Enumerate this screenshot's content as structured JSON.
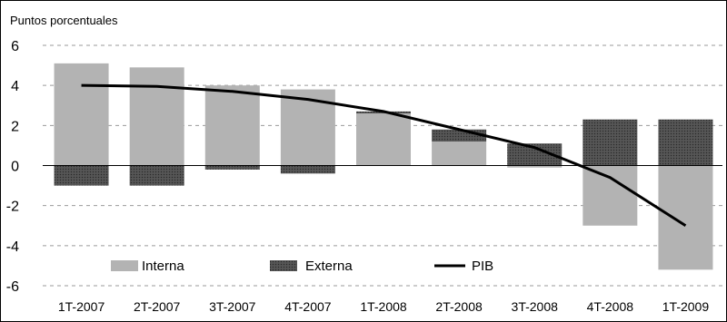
{
  "chart_data": {
    "type": "bar",
    "ylabel": "Puntos porcentuales",
    "ylim": [
      -6,
      6
    ],
    "yticks": [
      "6",
      "4",
      "2",
      "0",
      "-2",
      "-4",
      "-6"
    ],
    "ytick_values": [
      6,
      4,
      2,
      0,
      -2,
      -4,
      -6
    ],
    "categories": [
      "1T-2007",
      "2T-2007",
      "3T-2007",
      "4T-2007",
      "1T-2008",
      "2T-2008",
      "3T-2008",
      "4T-2008",
      "1T-2009"
    ],
    "series": [
      {
        "name": "Interna",
        "kind": "bar",
        "color": "#b3b3b3",
        "values": [
          5.1,
          4.9,
          4.0,
          3.8,
          2.6,
          1.2,
          -0.1,
          -3.0,
          -5.2
        ]
      },
      {
        "name": "Externa",
        "kind": "bar",
        "color": "#4a4a4a",
        "values": [
          -1.0,
          -1.0,
          -0.2,
          -0.4,
          0.1,
          0.6,
          1.1,
          2.3,
          2.3
        ]
      },
      {
        "name": "PIB",
        "kind": "line",
        "color": "#000000",
        "values": [
          4.0,
          3.95,
          3.7,
          3.3,
          2.7,
          1.8,
          0.9,
          -0.6,
          -3.0
        ]
      }
    ],
    "grid": "horizontal dashed",
    "legend_position": "bottom-left inside plot"
  }
}
